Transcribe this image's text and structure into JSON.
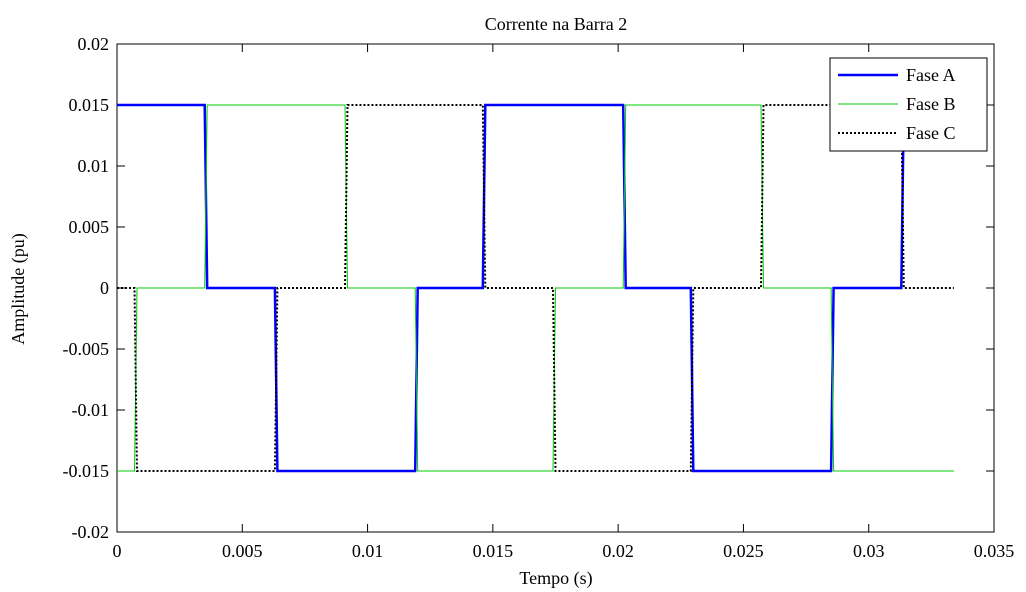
{
  "chart_data": {
    "type": "line",
    "title": "Corrente na Barra 2",
    "xlabel": "Tempo (s)",
    "ylabel": "Amplitude (pu)",
    "xlim": [
      0,
      0.035
    ],
    "ylim": [
      -0.02,
      0.02
    ],
    "x_ticks": [
      "0",
      "0.005",
      "0.01",
      "0.015",
      "0.02",
      "0.025",
      "0.03",
      "0.035"
    ],
    "y_ticks": [
      "-0.02",
      "-0.015",
      "-0.01",
      "-0.005",
      "0",
      "0.005",
      "0.01",
      "0.015",
      "0.02"
    ],
    "grid": false,
    "legend_position": "top-right",
    "series": [
      {
        "name": "Fase A",
        "color": "#0000ff",
        "style": "solid",
        "points": [
          [
            0,
            0.015
          ],
          [
            0.0035,
            0.015
          ],
          [
            0.0036,
            0
          ],
          [
            0.0063,
            0
          ],
          [
            0.0064,
            -0.015
          ],
          [
            0.0119,
            -0.015
          ],
          [
            0.012,
            0
          ],
          [
            0.0146,
            0
          ],
          [
            0.0147,
            0.015
          ],
          [
            0.0202,
            0.015
          ],
          [
            0.0203,
            0
          ],
          [
            0.0229,
            0
          ],
          [
            0.023,
            -0.015
          ],
          [
            0.0285,
            -0.015
          ],
          [
            0.0286,
            0
          ],
          [
            0.0313,
            0
          ],
          [
            0.0314,
            0.015
          ],
          [
            0.0315,
            0.015
          ]
        ]
      },
      {
        "name": "Fase B",
        "color": "#00cc00",
        "style": "solid",
        "points": [
          [
            0,
            -0.015
          ],
          [
            0.0007,
            -0.015
          ],
          [
            0.0008,
            0
          ],
          [
            0.0035,
            0
          ],
          [
            0.0036,
            0.015
          ],
          [
            0.0091,
            0.015
          ],
          [
            0.0092,
            0
          ],
          [
            0.0119,
            0
          ],
          [
            0.012,
            -0.015
          ],
          [
            0.0174,
            -0.015
          ],
          [
            0.0175,
            0
          ],
          [
            0.0202,
            0
          ],
          [
            0.0203,
            0.015
          ],
          [
            0.0257,
            0.015
          ],
          [
            0.0258,
            0
          ],
          [
            0.0285,
            0
          ],
          [
            0.0286,
            -0.015
          ],
          [
            0.0334,
            -0.015
          ]
        ]
      },
      {
        "name": "Fase C",
        "color": "#000000",
        "style": "dotted",
        "points": [
          [
            0,
            0
          ],
          [
            0.0007,
            0
          ],
          [
            0.0008,
            -0.015
          ],
          [
            0.0063,
            -0.015
          ],
          [
            0.0064,
            0
          ],
          [
            0.0091,
            0
          ],
          [
            0.0092,
            0.015
          ],
          [
            0.0146,
            0.015
          ],
          [
            0.0147,
            0
          ],
          [
            0.0174,
            0
          ],
          [
            0.0175,
            -0.015
          ],
          [
            0.0229,
            -0.015
          ],
          [
            0.023,
            0
          ],
          [
            0.0257,
            0
          ],
          [
            0.0258,
            0.015
          ],
          [
            0.0313,
            0.015
          ],
          [
            0.0314,
            0
          ],
          [
            0.0334,
            0
          ]
        ]
      }
    ]
  }
}
